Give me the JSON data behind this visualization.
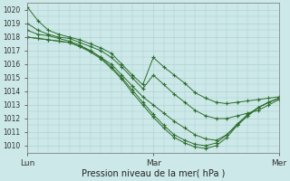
{
  "background_color": "#cce8e8",
  "plot_background": "#cce8e8",
  "grid_color": "#aacccc",
  "line_color": "#2d6e2d",
  "marker_color": "#2d6e2d",
  "xlabel": "Pression niveau de la mer( hPa )",
  "xtick_labels": [
    "Lun",
    "Mar",
    "Mer"
  ],
  "xtick_positions": [
    0,
    24,
    48
  ],
  "ylim": [
    1009.5,
    1020.5
  ],
  "yticks": [
    1010,
    1011,
    1012,
    1013,
    1014,
    1015,
    1016,
    1017,
    1018,
    1019,
    1020
  ],
  "series": [
    {
      "x": [
        0,
        2,
        4,
        6,
        8,
        10,
        12,
        14,
        16,
        18,
        20,
        22,
        24,
        26,
        28,
        30,
        32,
        34,
        36,
        38,
        40,
        42,
        44,
        46,
        48
      ],
      "y": [
        1020.2,
        1019.2,
        1018.5,
        1018.2,
        1018.0,
        1017.8,
        1017.5,
        1017.2,
        1016.8,
        1016.0,
        1015.2,
        1014.5,
        1016.5,
        1015.8,
        1015.2,
        1014.6,
        1013.9,
        1013.5,
        1013.2,
        1013.1,
        1013.2,
        1013.3,
        1013.4,
        1013.5,
        1013.6
      ]
    },
    {
      "x": [
        0,
        2,
        4,
        6,
        8,
        10,
        12,
        14,
        16,
        18,
        20,
        22,
        24,
        26,
        28,
        30,
        32,
        34,
        36,
        38,
        40,
        42,
        44,
        46,
        48
      ],
      "y": [
        1019.0,
        1018.5,
        1018.2,
        1018.0,
        1017.9,
        1017.6,
        1017.3,
        1017.0,
        1016.5,
        1015.8,
        1015.0,
        1014.2,
        1015.2,
        1014.5,
        1013.8,
        1013.2,
        1012.6,
        1012.2,
        1012.0,
        1012.0,
        1012.2,
        1012.4,
        1012.6,
        1013.0,
        1013.4
      ]
    },
    {
      "x": [
        0,
        2,
        4,
        6,
        8,
        10,
        12,
        14,
        16,
        18,
        20,
        22,
        24,
        26,
        28,
        30,
        32,
        34,
        36,
        38,
        40,
        42,
        44,
        46,
        48
      ],
      "y": [
        1018.5,
        1018.2,
        1018.1,
        1017.9,
        1017.7,
        1017.4,
        1017.0,
        1016.5,
        1016.0,
        1015.2,
        1014.4,
        1013.6,
        1013.0,
        1012.4,
        1011.8,
        1011.3,
        1010.8,
        1010.5,
        1010.4,
        1010.8,
        1011.5,
        1012.2,
        1012.8,
        1013.2,
        1013.5
      ]
    },
    {
      "x": [
        0,
        2,
        4,
        6,
        8,
        10,
        12,
        14,
        16,
        18,
        20,
        22,
        24,
        26,
        28,
        30,
        32,
        34,
        36,
        38,
        40,
        42,
        44,
        46,
        48
      ],
      "y": [
        1018.0,
        1017.9,
        1017.8,
        1017.7,
        1017.6,
        1017.3,
        1017.0,
        1016.5,
        1015.8,
        1015.0,
        1014.1,
        1013.2,
        1012.3,
        1011.5,
        1010.8,
        1010.4,
        1010.1,
        1010.0,
        1010.2,
        1010.8,
        1011.6,
        1012.3,
        1012.8,
        1013.2,
        1013.5
      ]
    },
    {
      "x": [
        0,
        2,
        4,
        6,
        8,
        10,
        12,
        14,
        16,
        18,
        20,
        22,
        24,
        26,
        28,
        30,
        32,
        34,
        36,
        38,
        40,
        42,
        44,
        46,
        48
      ],
      "y": [
        1018.0,
        1017.9,
        1017.8,
        1017.7,
        1017.6,
        1017.3,
        1016.9,
        1016.4,
        1015.7,
        1014.9,
        1013.9,
        1013.0,
        1012.1,
        1011.3,
        1010.6,
        1010.2,
        1009.9,
        1009.8,
        1010.0,
        1010.6,
        1011.5,
        1012.2,
        1012.8,
        1013.2,
        1013.5
      ]
    }
  ]
}
